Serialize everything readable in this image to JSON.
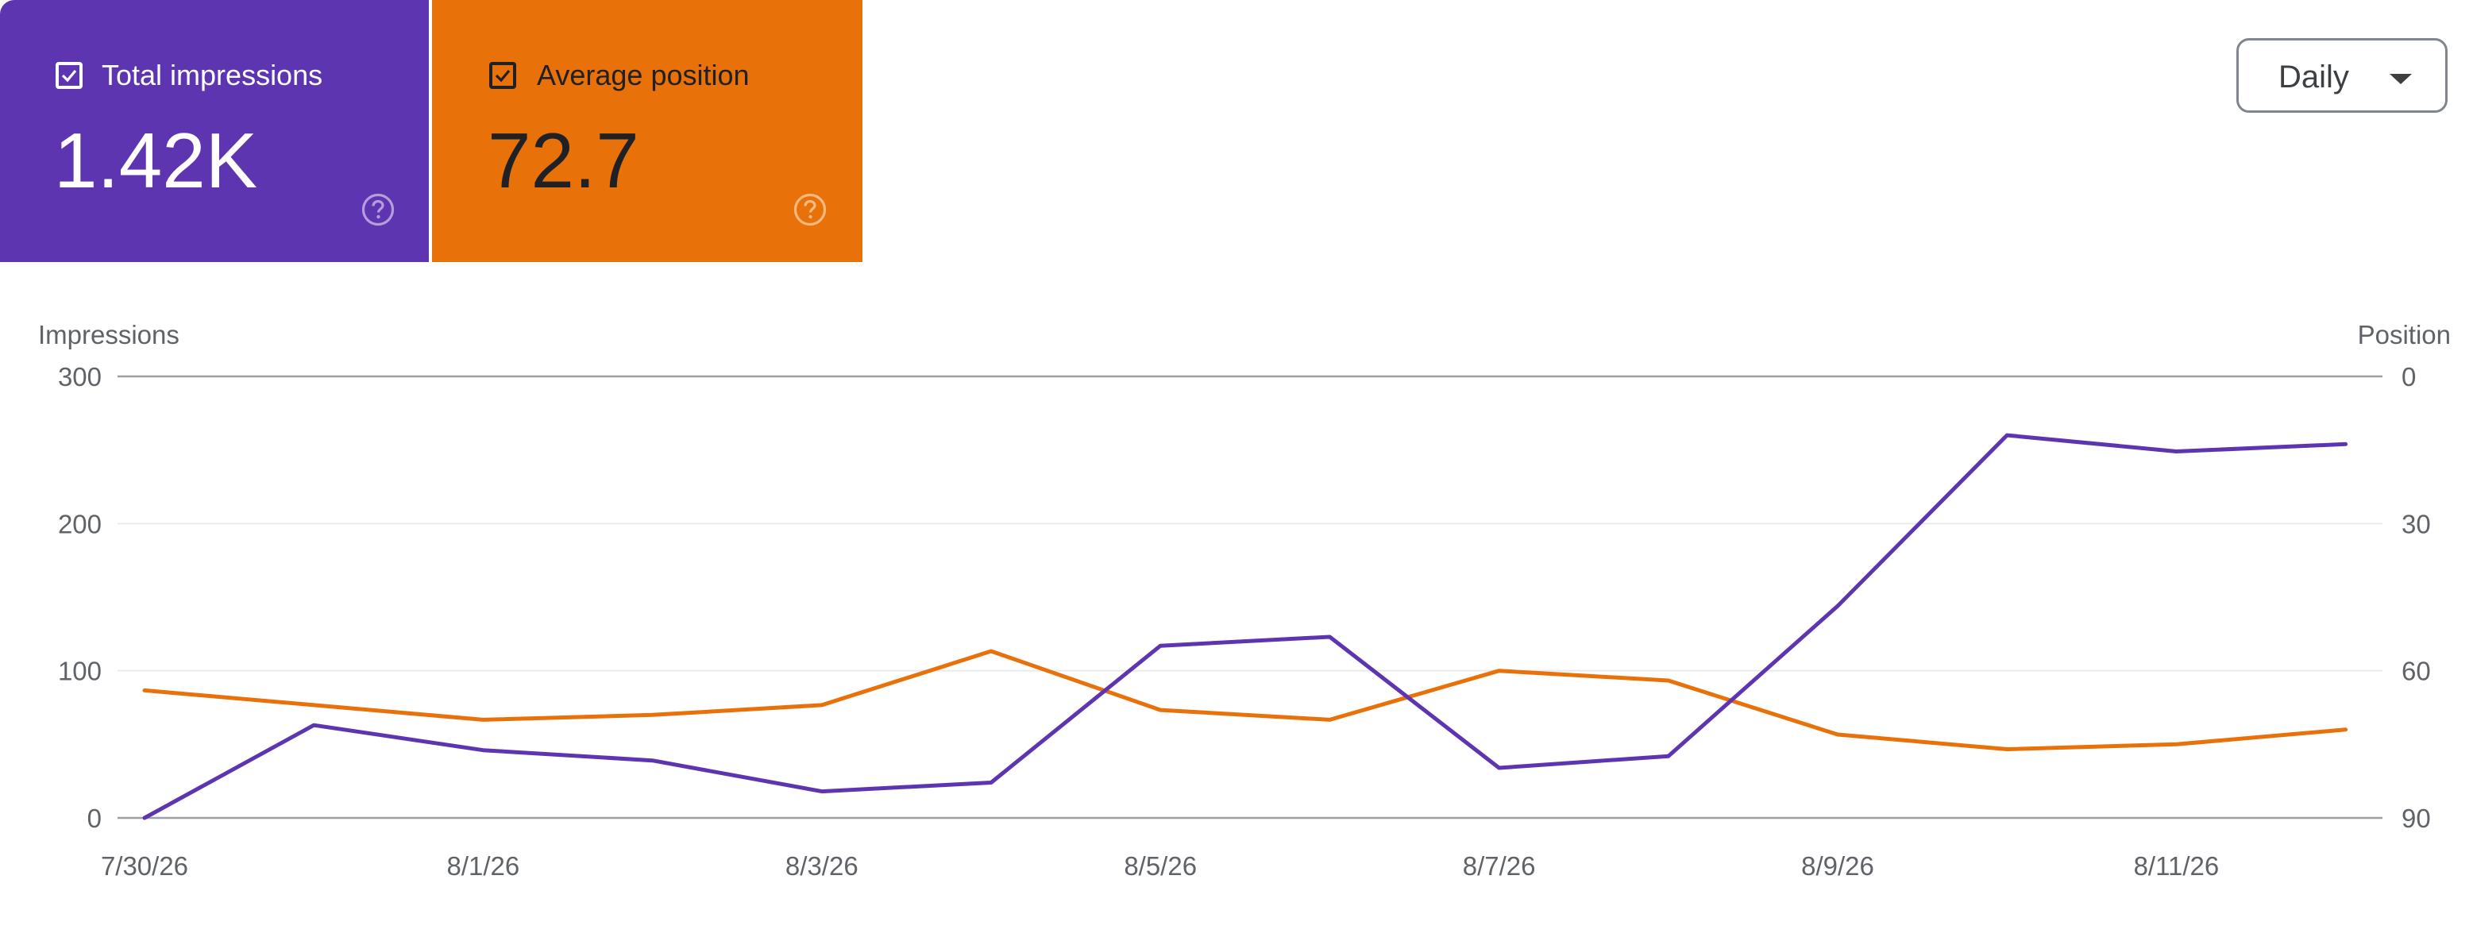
{
  "metrics": {
    "impressions": {
      "label": "Total impressions",
      "value": "1.42K",
      "checked": true,
      "color": "#5e35b1"
    },
    "position": {
      "label": "Average position",
      "value": "72.7",
      "checked": true,
      "color": "#e8710a"
    }
  },
  "granularity": {
    "selected": "Daily"
  },
  "chart_data": {
    "type": "line",
    "x": [
      "7/30/26",
      "7/31/26",
      "8/1/26",
      "8/2/26",
      "8/3/26",
      "8/4/26",
      "8/5/26",
      "8/6/26",
      "8/7/26",
      "8/8/26",
      "8/9/26",
      "8/10/26",
      "8/11/26",
      "8/12/26"
    ],
    "x_tick_labels": [
      "7/30/26",
      "8/1/26",
      "8/3/26",
      "8/5/26",
      "8/7/26",
      "8/9/26",
      "8/11/26"
    ],
    "series": [
      {
        "name": "Impressions",
        "axis": "left",
        "color": "#5e35b1",
        "values": [
          0,
          63,
          46,
          39,
          18,
          24,
          117,
          123,
          34,
          42,
          144,
          260,
          249,
          254
        ]
      },
      {
        "name": "Position",
        "axis": "right",
        "color": "#e8710a",
        "values": [
          64,
          67,
          70,
          69,
          67,
          56,
          68,
          70,
          60,
          62,
          73,
          76,
          75,
          72
        ]
      }
    ],
    "ylabel_left": "Impressions",
    "ylabel_right": "Position",
    "ylim_left": [
      0,
      300
    ],
    "yticks_left": [
      "300",
      "200",
      "100",
      "0"
    ],
    "ylim_right": [
      0,
      90
    ],
    "right_axis_inverted": true,
    "yticks_right": [
      "0",
      "30",
      "60",
      "90"
    ],
    "grid": true
  }
}
